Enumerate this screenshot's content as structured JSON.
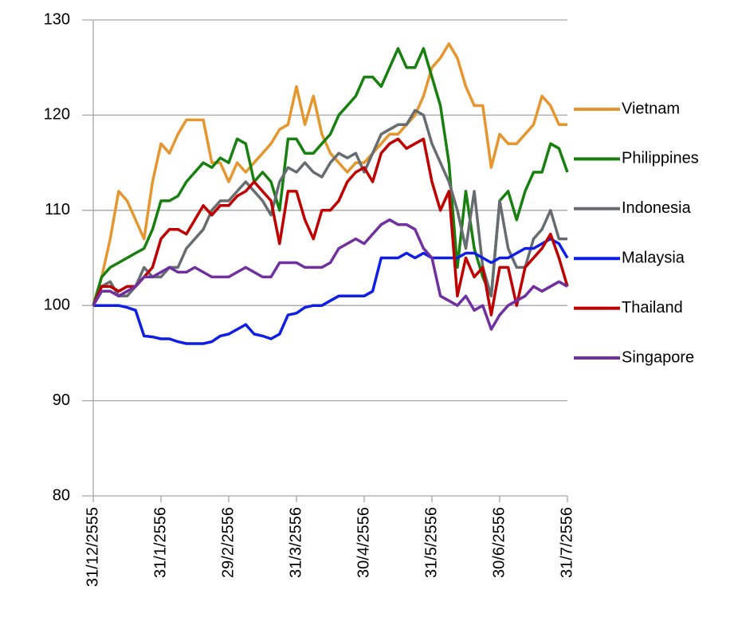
{
  "chart_data": {
    "type": "line",
    "categories": [
      "31/12/2555",
      null,
      null,
      null,
      null,
      null,
      null,
      null,
      "31/1/2556",
      null,
      null,
      null,
      null,
      null,
      null,
      null,
      "29/2/2556",
      null,
      null,
      null,
      null,
      null,
      null,
      null,
      "31/3/2556",
      null,
      null,
      null,
      null,
      null,
      null,
      null,
      "30/4/2556",
      null,
      null,
      null,
      null,
      null,
      null,
      null,
      "31/5/2556",
      null,
      null,
      null,
      null,
      null,
      null,
      null,
      "30/6/2556",
      null,
      null,
      null,
      null,
      null,
      null,
      null,
      "31/7/2556"
    ],
    "series": [
      {
        "name": "Vietnam",
        "color": "#e5962e",
        "values": [
          100,
          103,
          107,
          112,
          111,
          109,
          107,
          113,
          117,
          116,
          118,
          119.5,
          119.5,
          119.5,
          115,
          115,
          113,
          115,
          114,
          115,
          116,
          117,
          118.5,
          119,
          123,
          119,
          122,
          118,
          116,
          115,
          114,
          115,
          115,
          116,
          117,
          118,
          118,
          119,
          120,
          122,
          125,
          126,
          127.5,
          126,
          123,
          121,
          121,
          114.5,
          118,
          117,
          117,
          118,
          119,
          122,
          121,
          119,
          119
        ]
      },
      {
        "name": "Philippines",
        "color": "#17800f",
        "values": [
          100,
          103,
          104,
          104.5,
          105,
          105.5,
          106,
          108,
          111,
          111,
          111.5,
          113,
          114,
          115,
          114.5,
          115.5,
          115,
          117.5,
          117,
          113,
          114,
          113,
          110,
          117.5,
          117.5,
          116,
          116,
          117,
          118,
          120,
          121,
          122,
          124,
          124,
          123,
          125,
          127,
          125,
          125,
          127,
          124,
          121,
          115,
          104,
          112,
          106,
          103,
          101,
          111,
          112,
          109,
          112,
          114,
          114,
          117,
          116.5,
          114
        ]
      },
      {
        "name": "Indonesia",
        "color": "#666c70",
        "values": [
          100,
          102,
          102.5,
          101,
          101,
          102,
          104,
          103,
          103,
          104,
          104,
          106,
          107,
          108,
          110,
          111,
          111,
          112,
          113,
          112,
          111,
          109.5,
          113,
          114.5,
          114,
          115,
          114,
          113.5,
          115,
          116,
          115.5,
          116,
          114,
          116,
          118,
          118.5,
          119,
          119,
          120.5,
          120,
          117,
          115,
          113,
          110,
          106,
          112,
          104,
          101,
          111,
          106,
          104,
          104,
          107,
          108,
          110,
          107,
          107
        ]
      },
      {
        "name": "Malaysia",
        "color": "#0f1ee6",
        "values": [
          100,
          100,
          100,
          100,
          99.8,
          99.5,
          96.8,
          96.7,
          96.5,
          96.5,
          96.2,
          96,
          96,
          96,
          96.2,
          96.8,
          97,
          97.5,
          98,
          97,
          96.8,
          96.5,
          97,
          99,
          99.2,
          99.8,
          100,
          100,
          100.5,
          101,
          101,
          101,
          101,
          101.5,
          105,
          105,
          105,
          105.5,
          105,
          105.5,
          105,
          105,
          105,
          105,
          105.5,
          105.5,
          105,
          104.5,
          105,
          105,
          105.5,
          106,
          106,
          106.5,
          107,
          106.5,
          105
        ]
      },
      {
        "name": "Thailand",
        "color": "#c00000",
        "values": [
          100,
          102,
          102,
          101.5,
          102,
          102,
          103,
          104,
          107,
          108,
          108,
          107.5,
          109,
          110.5,
          109.5,
          110.5,
          110.5,
          111.5,
          112,
          113,
          112,
          111,
          106.5,
          112,
          112,
          109,
          107,
          110,
          110,
          111,
          113,
          114,
          114.5,
          113,
          116,
          117,
          117.5,
          116.5,
          117,
          117.5,
          113,
          110,
          112,
          101,
          105,
          103,
          104,
          99,
          104,
          104,
          100,
          104,
          105,
          106,
          107.5,
          105,
          102
        ]
      },
      {
        "name": "Singapore",
        "color": "#7030a0",
        "values": [
          100,
          101.5,
          101.5,
          101,
          101.5,
          102,
          103,
          103,
          103.5,
          104,
          103.5,
          103.5,
          104,
          103.5,
          103,
          103,
          103,
          103.5,
          104,
          103.5,
          103,
          103,
          104.5,
          104.5,
          104.5,
          104,
          104,
          104,
          104.5,
          106,
          106.5,
          107,
          106.5,
          107.5,
          108.5,
          109,
          108.5,
          108.5,
          108,
          106,
          105,
          101,
          100.5,
          100,
          101,
          99.5,
          100,
          97.5,
          99,
          100,
          100.5,
          101,
          102,
          101.5,
          102,
          102.5,
          102
        ]
      }
    ],
    "ylim": [
      80,
      130
    ],
    "yticks": [
      80,
      90,
      100,
      110,
      120,
      130
    ],
    "grid": true,
    "legend": "right"
  }
}
